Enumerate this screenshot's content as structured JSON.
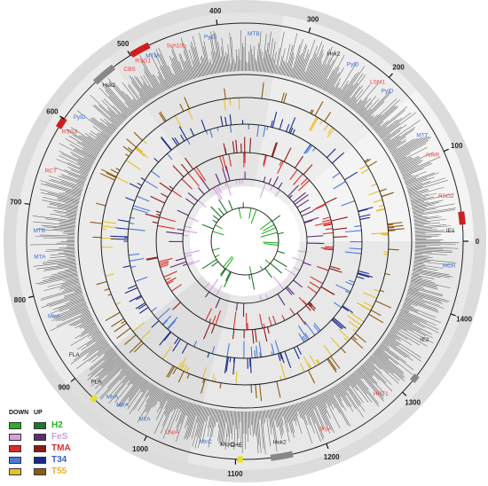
{
  "chart_data": {
    "type": "circular-genome-map",
    "tick_labels": [
      "0",
      "100",
      "200",
      "300",
      "400",
      "500",
      "600",
      "700",
      "800",
      "900",
      "1000",
      "1100",
      "1200",
      "1300",
      "1400"
    ],
    "gene_labels": [
      {
        "text": "Sch10b",
        "color": "#e8403a"
      },
      {
        "text": "PylD",
        "color": "#3a6fd8"
      },
      {
        "text": "CBS",
        "color": "#e8403a"
      },
      {
        "text": "RSG1",
        "color": "#e8403a"
      },
      {
        "text": "MTM",
        "color": "#3a6fd8"
      },
      {
        "text": "MTB",
        "color": "#3a6fd8"
      },
      {
        "text": "Hsk2",
        "color": "#222222"
      },
      {
        "text": "PylD",
        "color": "#3a6fd8"
      },
      {
        "text": "LSM1",
        "color": "#e8403a"
      },
      {
        "text": "PylD",
        "color": "#3a6fd8"
      },
      {
        "text": "MTT",
        "color": "#3a6fd8"
      },
      {
        "text": "AnkR",
        "color": "#e8403a"
      },
      {
        "text": "RSG2",
        "color": "#e8403a"
      },
      {
        "text": "IE1",
        "color": "#222222"
      },
      {
        "text": "MCR",
        "color": "#3a6fd8"
      },
      {
        "text": "IE2",
        "color": "#222222"
      },
      {
        "text": "HHT1",
        "color": "#e8403a"
      },
      {
        "text": "Hsk2",
        "color": "#222222"
      },
      {
        "text": "SrpA",
        "color": "#e8403a"
      },
      {
        "text": "CHE",
        "color": "#222222"
      },
      {
        "text": "McrC",
        "color": "#222222"
      },
      {
        "text": "MtrC",
        "color": "#3a6fd8"
      },
      {
        "text": "UspA",
        "color": "#e8403a"
      },
      {
        "text": "MTA",
        "color": "#3a6fd8"
      },
      {
        "text": "MtrA",
        "color": "#3a6fd8"
      },
      {
        "text": "MtrA",
        "color": "#3a6fd8"
      },
      {
        "text": "PLA",
        "color": "#222222"
      },
      {
        "text": "FLA",
        "color": "#222222"
      },
      {
        "text": "MtrA",
        "color": "#3a6fd8"
      },
      {
        "text": "MTA",
        "color": "#3a6fd8"
      },
      {
        "text": "MTB",
        "color": "#3a6fd8"
      },
      {
        "text": "RCT",
        "color": "#e8403a"
      },
      {
        "text": "RSG3",
        "color": "#e8403a"
      },
      {
        "text": "PylD",
        "color": "#3a6fd8"
      },
      {
        "text": "Hsk2",
        "color": "#222222"
      }
    ],
    "legend": {
      "header_down": "DOWN",
      "header_up": "UP",
      "series": [
        {
          "name": "H2",
          "down_color": "#2bb02b",
          "up_color": "#1b7a2a",
          "label_color": "#2bb02b"
        },
        {
          "name": "FeS",
          "down_color": "#d9a0e6",
          "up_color": "#5a2a78",
          "label_color": "#c79be0"
        },
        {
          "name": "TMA",
          "down_color": "#d92d2d",
          "up_color": "#8a1a1a",
          "label_color": "#d92d2d"
        },
        {
          "name": "T34",
          "down_color": "#4a7bd8",
          "up_color": "#1a2a8a",
          "label_color": "#3a5bd8"
        },
        {
          "name": "T55",
          "down_color": "#e6c02a",
          "up_color": "#8a5a10",
          "label_color": "#e6b02a"
        }
      ]
    }
  }
}
